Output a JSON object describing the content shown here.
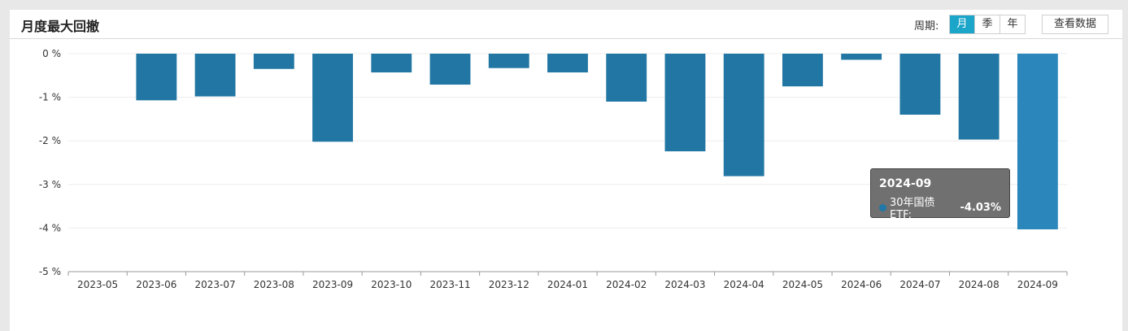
{
  "header": {
    "title": "月度最大回撤",
    "period_label": "周期:",
    "period_options": [
      "月",
      "季",
      "年"
    ],
    "period_selected": "月",
    "view_data_label": "查看数据"
  },
  "chart_data": {
    "type": "bar",
    "categories": [
      "2023-05",
      "2023-06",
      "2023-07",
      "2023-08",
      "2023-09",
      "2023-10",
      "2023-11",
      "2023-12",
      "2024-01",
      "2024-02",
      "2024-03",
      "2024-04",
      "2024-05",
      "2024-06",
      "2024-07",
      "2024-08",
      "2024-09"
    ],
    "series": [
      {
        "name": "30年国债ETF",
        "values": [
          0,
          -1.07,
          -0.98,
          -0.35,
          -2.02,
          -0.43,
          -0.71,
          -0.33,
          -0.43,
          -1.1,
          -2.24,
          -2.81,
          -0.75,
          -0.14,
          -1.4,
          -1.97,
          -4.03
        ]
      }
    ],
    "y_ticks": [
      "0 %",
      "-1 %",
      "-2 %",
      "-3 %",
      "-4 %",
      "-5 %"
    ],
    "ylim": [
      -5,
      0
    ],
    "grid": true,
    "colors": {
      "bar": "#2176a3",
      "bar_highlight": "#2a86bb"
    },
    "highlighted_index": 16
  },
  "tooltip": {
    "title": "2024-09",
    "series_label": "30年国债ETF:",
    "value": "-4.03%"
  }
}
